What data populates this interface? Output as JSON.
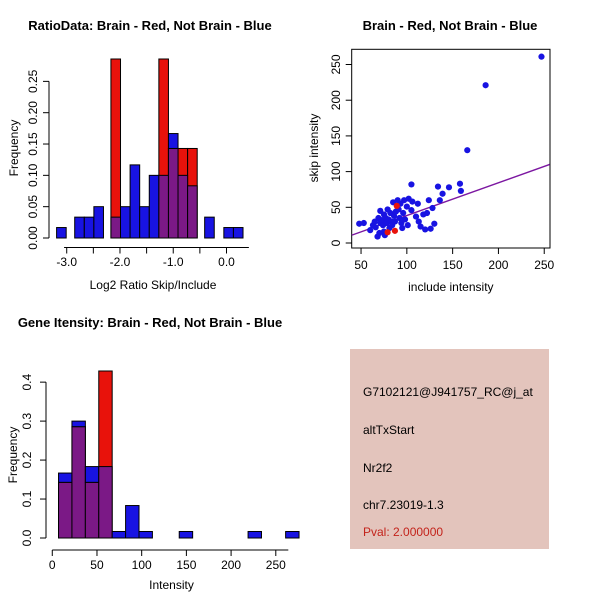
{
  "colors": {
    "red": "#E8120B",
    "blue": "#1813E2",
    "purple": "#7B1986",
    "fit_line": "#7C17A1",
    "pval_red": "#C3231B",
    "info_bg": "#E3C4BC",
    "axis": "#000000"
  },
  "chart_data": [
    {
      "id": "ratio_histogram",
      "type": "bar",
      "title": "RatioData: Brain - Red, Not Brain - Blue",
      "xlabel": "Log2 Ratio Skip/Include",
      "ylabel": "Frequency",
      "xlim": [
        -3.22,
        0.46
      ],
      "ylim": [
        0,
        0.2857
      ],
      "grid": false,
      "xticks": [
        {
          "v": -3.0,
          "label": "-3.0"
        },
        {
          "v": -2.5,
          "label": ""
        },
        {
          "v": -2.0,
          "label": "-2.0"
        },
        {
          "v": -1.5,
          "label": ""
        },
        {
          "v": -1.0,
          "label": "-1.0"
        },
        {
          "v": -0.5,
          "label": ""
        },
        {
          "v": 0.0,
          "label": "0.0"
        }
      ],
      "yticks": [
        {
          "v": 0.0,
          "label": "0.00"
        },
        {
          "v": 0.05,
          "label": "0.05"
        },
        {
          "v": 0.1,
          "label": "0.10"
        },
        {
          "v": 0.15,
          "label": "0.15"
        },
        {
          "v": 0.2,
          "label": "0.20"
        },
        {
          "v": 0.25,
          "label": "0.25"
        }
      ],
      "series": [
        {
          "name": "Not Brain",
          "color_key": "blue",
          "bars": [
            [
              -3.19,
              -3.01,
              0.0167
            ],
            [
              -2.85,
              -2.67,
              0.0333
            ],
            [
              -2.67,
              -2.49,
              0.0333
            ],
            [
              -2.49,
              -2.31,
              0.05
            ],
            [
              -2.17,
              -1.99,
              0.0333
            ],
            [
              -1.99,
              -1.81,
              0.05
            ],
            [
              -1.81,
              -1.63,
              0.1167
            ],
            [
              -1.63,
              -1.45,
              0.05
            ],
            [
              -1.45,
              -1.27,
              0.1
            ],
            [
              -1.27,
              -1.09,
              0.1
            ],
            [
              -1.09,
              -0.91,
              0.1667
            ],
            [
              -0.91,
              -0.73,
              0.1
            ],
            [
              -0.73,
              -0.55,
              0.0833
            ],
            [
              -0.41,
              -0.23,
              0.0333
            ],
            [
              -0.05,
              0.13,
              0.0167
            ],
            [
              0.13,
              0.31,
              0.0167
            ]
          ]
        },
        {
          "name": "Brain",
          "color_key": "red",
          "bars": [
            [
              -2.17,
              -1.99,
              0.2857
            ],
            [
              -1.27,
              -1.09,
              0.2857
            ],
            [
              -1.09,
              -0.91,
              0.1429
            ],
            [
              -0.91,
              -0.73,
              0.1429
            ],
            [
              -0.73,
              -0.55,
              0.1429
            ]
          ]
        }
      ]
    },
    {
      "id": "intensity_scatter",
      "type": "scatter",
      "title": "Brain - Red, Not Brain - Blue",
      "xlabel": "include intensity",
      "ylabel": "skip intensity",
      "xlim": [
        39.8,
        256.3
      ],
      "ylim": [
        -7,
        271.3
      ],
      "grid": false,
      "box": true,
      "xticks": [
        {
          "v": 50,
          "label": "50"
        },
        {
          "v": 100,
          "label": "100"
        },
        {
          "v": 150,
          "label": "150"
        },
        {
          "v": 200,
          "label": "200"
        },
        {
          "v": 250,
          "label": "250"
        }
      ],
      "yticks": [
        {
          "v": 0,
          "label": "0"
        },
        {
          "v": 50,
          "label": "50"
        },
        {
          "v": 100,
          "label": "100"
        },
        {
          "v": 150,
          "label": "150"
        },
        {
          "v": 200,
          "label": "200"
        },
        {
          "v": 250,
          "label": "250"
        }
      ],
      "fit_line": {
        "x1": 40,
        "y1": 11,
        "x2": 256,
        "y2": 110
      },
      "series": [
        {
          "name": "Not Brain",
          "color_key": "blue",
          "points": [
            [
              48,
              27
            ],
            [
              53,
              28
            ],
            [
              60,
              18
            ],
            [
              63,
              25
            ],
            [
              65,
              30
            ],
            [
              66,
              22
            ],
            [
              68,
              9
            ],
            [
              69,
              35
            ],
            [
              70,
              14
            ],
            [
              71,
              28
            ],
            [
              71,
              45
            ],
            [
              73,
              32
            ],
            [
              74,
              25
            ],
            [
              75,
              16
            ],
            [
              75,
              40
            ],
            [
              76,
              11
            ],
            [
              77,
              35
            ],
            [
              78,
              28
            ],
            [
              79,
              47
            ],
            [
              80,
              33
            ],
            [
              81,
              21
            ],
            [
              82,
              42
            ],
            [
              83,
              30
            ],
            [
              84,
              25
            ],
            [
              85,
              57
            ],
            [
              86,
              38
            ],
            [
              87,
              30
            ],
            [
              88,
              44
            ],
            [
              90,
              60
            ],
            [
              91,
              47
            ],
            [
              92,
              35
            ],
            [
              93,
              55
            ],
            [
              94,
              28
            ],
            [
              95,
              21
            ],
            [
              96,
              42
            ],
            [
              97,
              60
            ],
            [
              98,
              33
            ],
            [
              100,
              51
            ],
            [
              101,
              25
            ],
            [
              102,
              62
            ],
            [
              105,
              46
            ],
            [
              105,
              82
            ],
            [
              106,
              58
            ],
            [
              110,
              37
            ],
            [
              112,
              55
            ],
            [
              113,
              30
            ],
            [
              115,
              23
            ],
            [
              118,
              40
            ],
            [
              120,
              19
            ],
            [
              122,
              42
            ],
            [
              124,
              60
            ],
            [
              126,
              20
            ],
            [
              128,
              49
            ],
            [
              130,
              27
            ],
            [
              134,
              79
            ],
            [
              136,
              60
            ],
            [
              139,
              69
            ],
            [
              146,
              78
            ],
            [
              158,
              83
            ],
            [
              159,
              73
            ],
            [
              166,
              130
            ],
            [
              186,
              221
            ],
            [
              247,
              261
            ]
          ]
        },
        {
          "name": "Brain",
          "color_key": "red",
          "points": [
            [
              89,
              52
            ],
            [
              79,
              15
            ],
            [
              87,
              17
            ]
          ]
        }
      ]
    },
    {
      "id": "gene_intensity_histogram",
      "type": "bar",
      "title": "Gene Itensity: Brain - Red, Not Brain - Blue",
      "xlabel": "Intensity",
      "ylabel": "Frequency",
      "xlim": [
        -5.9,
        272.6
      ],
      "ylim": [
        0,
        0.4286
      ],
      "grid": false,
      "xticks": [
        {
          "v": 0,
          "label": "0"
        },
        {
          "v": 50,
          "label": "50"
        },
        {
          "v": 100,
          "label": "100"
        },
        {
          "v": 150,
          "label": "150"
        },
        {
          "v": 200,
          "label": "200"
        },
        {
          "v": 250,
          "label": "250"
        }
      ],
      "yticks": [
        {
          "v": 0.0,
          "label": "0.0"
        },
        {
          "v": 0.1,
          "label": "0.1"
        },
        {
          "v": 0.2,
          "label": "0.2"
        },
        {
          "v": 0.3,
          "label": "0.3"
        },
        {
          "v": 0.4,
          "label": "0.4"
        }
      ],
      "series": [
        {
          "name": "Not Brain",
          "color_key": "blue",
          "bars": [
            [
              7,
              22,
              0.1667
            ],
            [
              22,
              37,
              0.3
            ],
            [
              37,
              52,
              0.1833
            ],
            [
              52,
              67,
              0.1833
            ],
            [
              67,
              82,
              0.0167
            ],
            [
              82,
              97,
              0.0833
            ],
            [
              97,
              112,
              0.0167
            ],
            [
              142,
              157,
              0.0167
            ],
            [
              219,
              234,
              0.0167
            ],
            [
              261,
              276,
              0.0167
            ]
          ]
        },
        {
          "name": "Brain",
          "color_key": "red",
          "bars": [
            [
              7,
              22,
              0.1429
            ],
            [
              22,
              37,
              0.2857
            ],
            [
              37,
              52,
              0.1429
            ],
            [
              52,
              67,
              0.4286
            ]
          ]
        }
      ]
    }
  ],
  "info_panel": {
    "probe_id": "G7102121@J941757_RC@j_at",
    "event_type": "altTxStart",
    "gene": "Nr2f2",
    "locus": "chr7.23019-1.3",
    "pval_label": "Pval: 2.000000"
  }
}
